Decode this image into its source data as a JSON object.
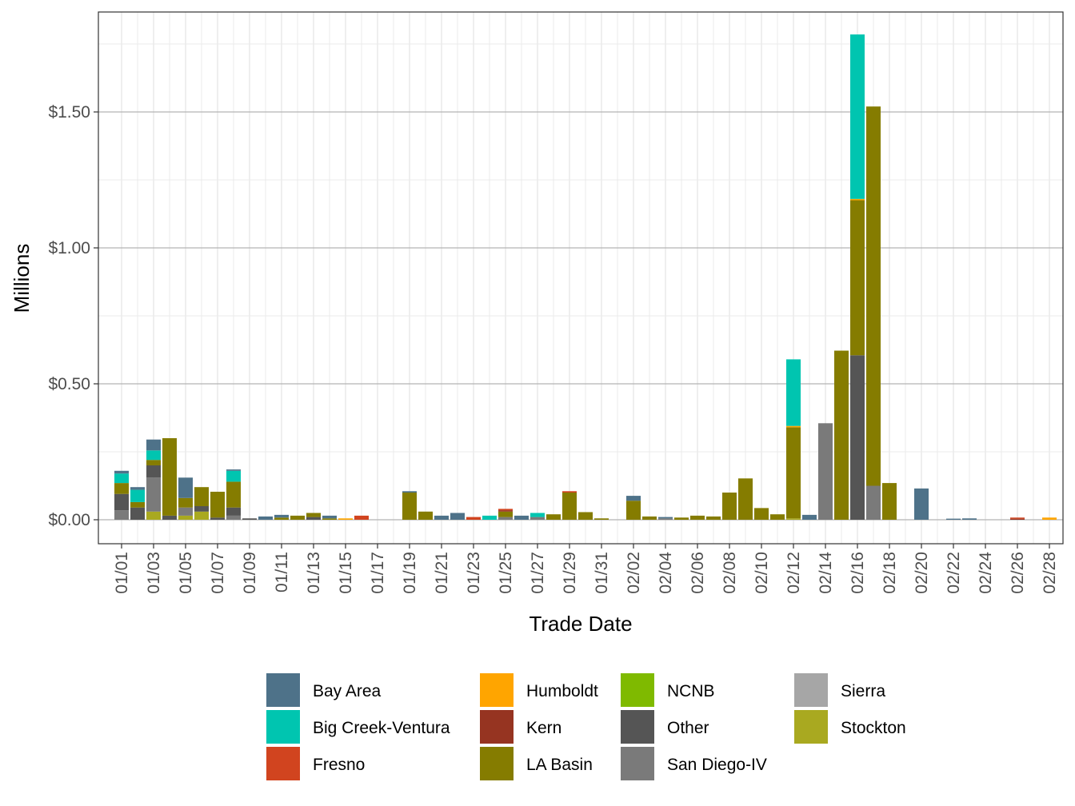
{
  "chart_data": {
    "type": "bar",
    "stacked": true,
    "xlabel": "Trade Date",
    "ylabel": "Millions",
    "ylim": [
      -0.09,
      1.87
    ],
    "yticks": [
      0,
      0.5,
      1.0,
      1.5
    ],
    "ytick_labels": [
      "$0.00",
      "$0.50",
      "$1.00",
      "$1.50"
    ],
    "grid": true,
    "legend_position": "bottom",
    "categories": [
      "01/01",
      "01/02",
      "01/03",
      "01/04",
      "01/05",
      "01/06",
      "01/07",
      "01/08",
      "01/09",
      "01/10",
      "01/11",
      "01/12",
      "01/13",
      "01/14",
      "01/15",
      "01/16",
      "01/17",
      "01/18",
      "01/19",
      "01/20",
      "01/21",
      "01/22",
      "01/23",
      "01/24",
      "01/25",
      "01/26",
      "01/27",
      "01/28",
      "01/29",
      "01/30",
      "01/31",
      "02/01",
      "02/02",
      "02/03",
      "02/04",
      "02/05",
      "02/06",
      "02/07",
      "02/08",
      "02/09",
      "02/10",
      "02/11",
      "02/12",
      "02/13",
      "02/14",
      "02/15",
      "02/16",
      "02/17",
      "02/18",
      "02/19",
      "02/20",
      "02/21",
      "02/22",
      "02/23",
      "02/24",
      "02/25",
      "02/26",
      "02/27",
      "02/28"
    ],
    "xtick_labels": [
      "01/01",
      "01/03",
      "01/05",
      "01/07",
      "01/09",
      "01/11",
      "01/13",
      "01/15",
      "01/17",
      "01/19",
      "01/21",
      "01/23",
      "01/25",
      "01/27",
      "01/29",
      "01/31",
      "02/02",
      "02/04",
      "02/06",
      "02/08",
      "02/10",
      "02/12",
      "02/14",
      "02/16",
      "02/18",
      "02/20",
      "02/22",
      "02/24",
      "02/26",
      "02/28"
    ],
    "series": [
      {
        "name": "Stockton",
        "color": "#a9a920",
        "values": [
          0,
          0,
          0.03,
          0,
          0.015,
          0.03,
          0,
          0,
          0,
          0,
          0,
          0,
          0,
          0,
          0,
          0,
          0,
          0,
          0,
          0,
          0,
          0,
          0,
          0,
          0,
          0,
          0,
          0,
          0,
          0,
          0,
          0,
          0,
          0,
          0,
          0,
          0,
          0,
          0,
          0,
          0,
          0,
          0.005,
          0,
          0,
          0,
          0,
          0,
          0,
          0,
          0,
          0,
          0,
          0,
          0,
          0,
          0,
          0,
          0
        ]
      },
      {
        "name": "Sierra",
        "color": "#a6a6a6",
        "values": [
          0,
          0,
          0,
          0,
          0,
          0,
          0,
          0,
          0,
          0,
          0,
          0,
          0,
          0,
          0,
          0,
          0,
          0,
          0,
          0,
          0,
          0,
          0,
          0,
          0,
          0,
          0,
          0,
          0,
          0,
          0,
          0,
          0,
          0,
          0,
          0,
          0,
          0,
          0,
          0,
          0,
          0,
          0,
          0,
          0,
          0,
          0,
          0,
          0,
          0,
          0,
          0,
          0,
          0,
          0,
          0,
          0,
          0,
          0
        ]
      },
      {
        "name": "San Diego-IV",
        "color": "#7a7a7a",
        "values": [
          0.035,
          0,
          0.125,
          0,
          0.03,
          0,
          0,
          0.015,
          0,
          0,
          0,
          0,
          0,
          0,
          0,
          0,
          0,
          0,
          0,
          0,
          0,
          0,
          0,
          0,
          0.01,
          0,
          0.01,
          0,
          0,
          0,
          0,
          0,
          0,
          0,
          0.005,
          0,
          0,
          0,
          0,
          0,
          0,
          0,
          0,
          0,
          0.355,
          0,
          0,
          0.125,
          0,
          0,
          0,
          0,
          0,
          0,
          0,
          0,
          0,
          0,
          0
        ]
      },
      {
        "name": "Other",
        "color": "#555555",
        "values": [
          0.06,
          0.045,
          0.045,
          0.015,
          0,
          0.02,
          0.008,
          0.03,
          0.005,
          0,
          0,
          0,
          0.01,
          0,
          0,
          0,
          0,
          0,
          0,
          0,
          0,
          0,
          0,
          0,
          0,
          0,
          0,
          0,
          0,
          0,
          0,
          0,
          0,
          0,
          0,
          0,
          0,
          0,
          0,
          0,
          0,
          0,
          0,
          0,
          0,
          0,
          0.605,
          0,
          0,
          0,
          0,
          0,
          0,
          0,
          0,
          0,
          0,
          0,
          0
        ]
      },
      {
        "name": "NCNB",
        "color": "#7fba00",
        "values": [
          0,
          0,
          0,
          0,
          0,
          0,
          0,
          0,
          0,
          0,
          0,
          0,
          0,
          0,
          0,
          0,
          0,
          0,
          0,
          0,
          0,
          0,
          0,
          0,
          0,
          0,
          0,
          0,
          0,
          0,
          0,
          0,
          0,
          0,
          0,
          0,
          0,
          0,
          0,
          0,
          0,
          0,
          0,
          0,
          0,
          0,
          0,
          0,
          0,
          0,
          0,
          0,
          0,
          0,
          0,
          0,
          0,
          0,
          0
        ]
      },
      {
        "name": "LA Basin",
        "color": "#857c00",
        "values": [
          0.04,
          0.02,
          0.02,
          0.285,
          0.035,
          0.07,
          0.095,
          0.095,
          0,
          0,
          0.008,
          0.015,
          0.015,
          0.005,
          0,
          0,
          0,
          0,
          0.1,
          0.03,
          0,
          0,
          0,
          0,
          0.02,
          0,
          0,
          0.02,
          0.1,
          0.028,
          0.005,
          0,
          0.07,
          0.012,
          0,
          0.008,
          0.015,
          0.012,
          0.1,
          0.152,
          0.043,
          0.02,
          0.335,
          0,
          0,
          0.622,
          0.57,
          1.395,
          0.135,
          0,
          0,
          0,
          0,
          0,
          0,
          0,
          0,
          0,
          0
        ]
      },
      {
        "name": "Kern",
        "color": "#963421",
        "values": [
          0,
          0,
          0,
          0,
          0,
          0,
          0,
          0,
          0,
          0,
          0,
          0,
          0,
          0,
          0,
          0,
          0,
          0,
          0,
          0,
          0,
          0,
          0,
          0,
          0.005,
          0,
          0,
          0,
          0,
          0,
          0,
          0,
          0,
          0,
          0,
          0,
          0,
          0,
          0,
          0,
          0,
          0,
          0,
          0,
          0,
          0,
          0,
          0,
          0,
          0,
          0,
          0,
          0,
          0,
          0,
          0,
          0.004,
          0,
          0
        ]
      },
      {
        "name": "Humboldt",
        "color": "#ffa500",
        "values": [
          0,
          0,
          0,
          0,
          0,
          0,
          0,
          0,
          0,
          0,
          0,
          0,
          0,
          0,
          0.005,
          0,
          0,
          0,
          0,
          0,
          0,
          0,
          0,
          0,
          0,
          0,
          0,
          0,
          0,
          0,
          0,
          0,
          0,
          0,
          0,
          0,
          0,
          0,
          0,
          0,
          0,
          0,
          0.005,
          0,
          0,
          0,
          0.005,
          0,
          0,
          0,
          0,
          0,
          0,
          0,
          0,
          0,
          0,
          0,
          0.008
        ]
      },
      {
        "name": "Fresno",
        "color": "#d1441f",
        "values": [
          0,
          0,
          0,
          0,
          0,
          0,
          0,
          0,
          0,
          0,
          0,
          0,
          0,
          0,
          0,
          0.015,
          0,
          0,
          0,
          0,
          0,
          0,
          0.01,
          0,
          0.005,
          0,
          0,
          0,
          0.005,
          0,
          0,
          0,
          0,
          0,
          0,
          0,
          0,
          0,
          0,
          0,
          0,
          0,
          0,
          0,
          0,
          0,
          0,
          0,
          0,
          0,
          0,
          0,
          0,
          0,
          0,
          0,
          0.004,
          0,
          0
        ]
      },
      {
        "name": "Big Creek-Ventura",
        "color": "#00c5b0",
        "values": [
          0.035,
          0.045,
          0.035,
          0,
          0,
          0,
          0,
          0.04,
          0,
          0,
          0,
          0,
          0,
          0,
          0,
          0,
          0,
          0,
          0,
          0,
          0,
          0,
          0,
          0.015,
          0,
          0,
          0.015,
          0,
          0,
          0,
          0,
          0,
          0,
          0,
          0,
          0,
          0,
          0,
          0,
          0,
          0,
          0,
          0.245,
          0,
          0,
          0,
          0.605,
          0,
          0,
          0,
          0,
          0,
          0,
          0,
          0,
          0,
          0,
          0,
          0
        ]
      },
      {
        "name": "Bay Area",
        "color": "#4e7289",
        "values": [
          0.01,
          0.01,
          0.04,
          0,
          0.075,
          0,
          0,
          0.005,
          0,
          0.012,
          0.01,
          0,
          0,
          0.01,
          0,
          0,
          0,
          0,
          0.005,
          0,
          0.015,
          0.025,
          0,
          0,
          0,
          0.015,
          0,
          0,
          0,
          0,
          0,
          0,
          0.018,
          0,
          0.005,
          0,
          0,
          0,
          0,
          0,
          0,
          0,
          0,
          0.018,
          0,
          0,
          0,
          0,
          0,
          0,
          0.115,
          0,
          0.004,
          0.005,
          0,
          0,
          0,
          0,
          0
        ]
      }
    ],
    "legend_order": [
      "Bay Area",
      "Big Creek-Ventura",
      "Fresno",
      "Humboldt",
      "Kern",
      "LA Basin",
      "NCNB",
      "Other",
      "San Diego-IV",
      "Sierra",
      "Stockton"
    ]
  }
}
